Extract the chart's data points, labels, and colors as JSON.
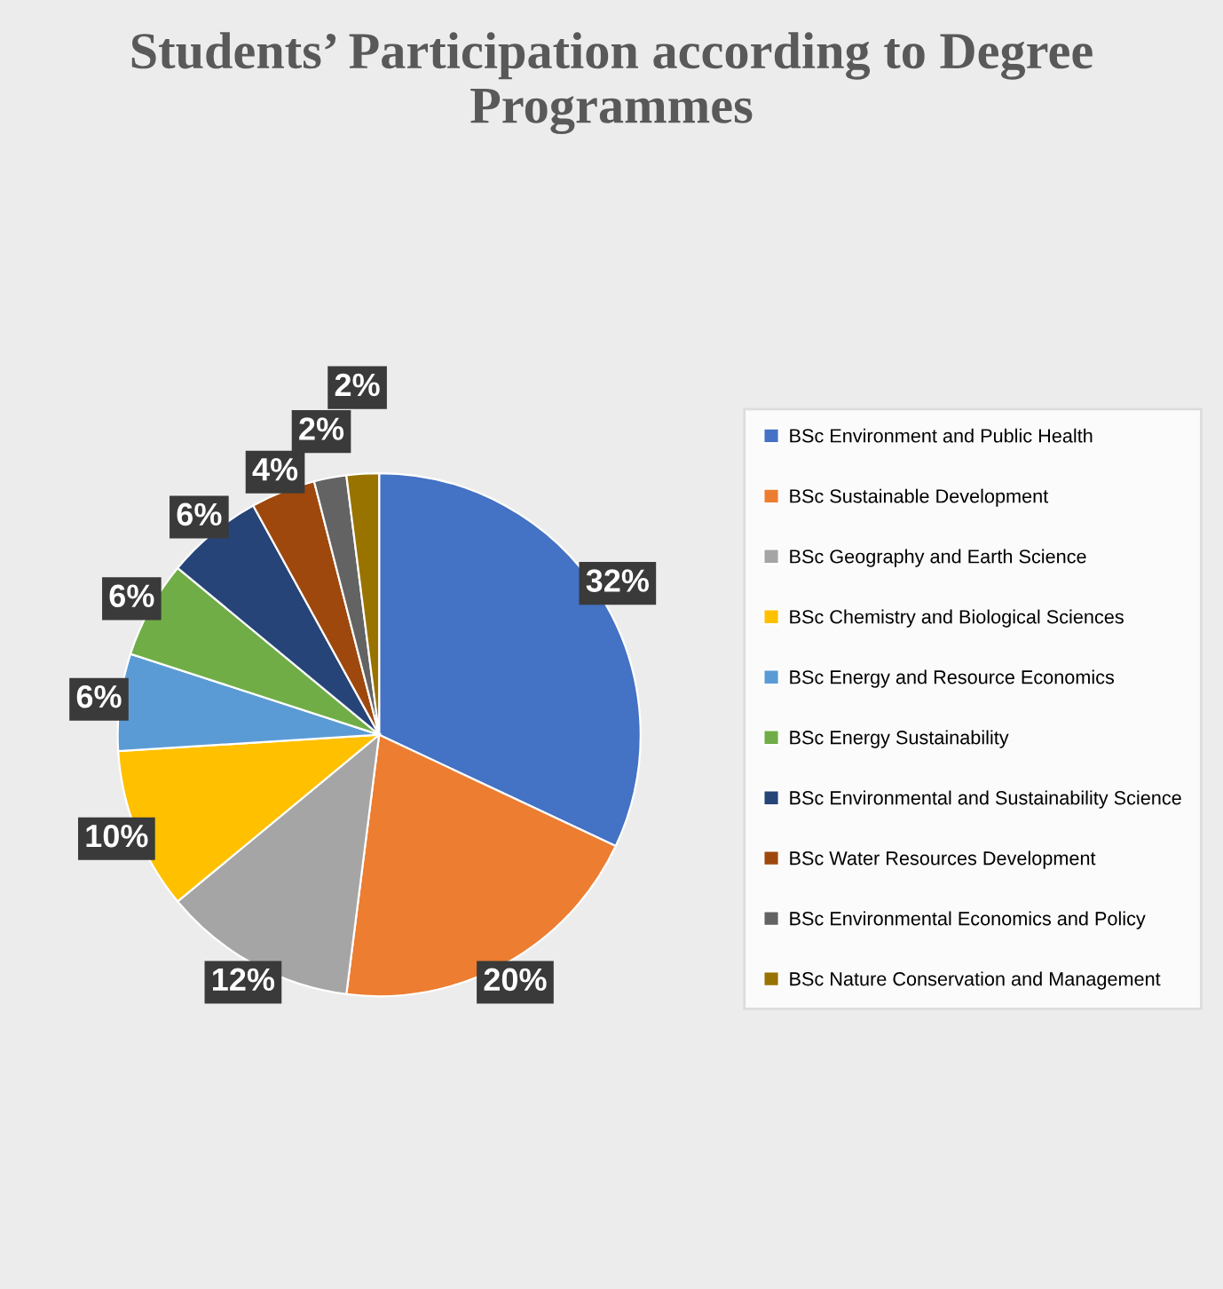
{
  "chart_data": {
    "type": "pie",
    "title": "Students’ Participation according to Degree Programmes",
    "categories": [
      "BSc Environment and Public Health",
      "BSc Sustainable Development",
      "BSc Geography and Earth Science",
      "BSc Chemistry and Biological Sciences",
      "BSc Energy and Resource Economics",
      "BSc Energy Sustainability",
      "BSc Environmental and Sustainability Science",
      "BSc Water Resources Development",
      "BSc Environmental Economics and Policy",
      "BSc Nature Conservation and Management"
    ],
    "values": [
      32,
      20,
      12,
      10,
      6,
      6,
      6,
      4,
      2,
      2
    ],
    "value_labels": [
      "32%",
      "20%",
      "12%",
      "10%",
      "6%",
      "6%",
      "6%",
      "4%",
      "2%",
      "2%"
    ],
    "colors": [
      "#4472c4",
      "#ed7d31",
      "#a5a5a5",
      "#ffc000",
      "#5b9bd5",
      "#70ad47",
      "#264478",
      "#9e480e",
      "#636363",
      "#997300"
    ],
    "legend": "right"
  }
}
